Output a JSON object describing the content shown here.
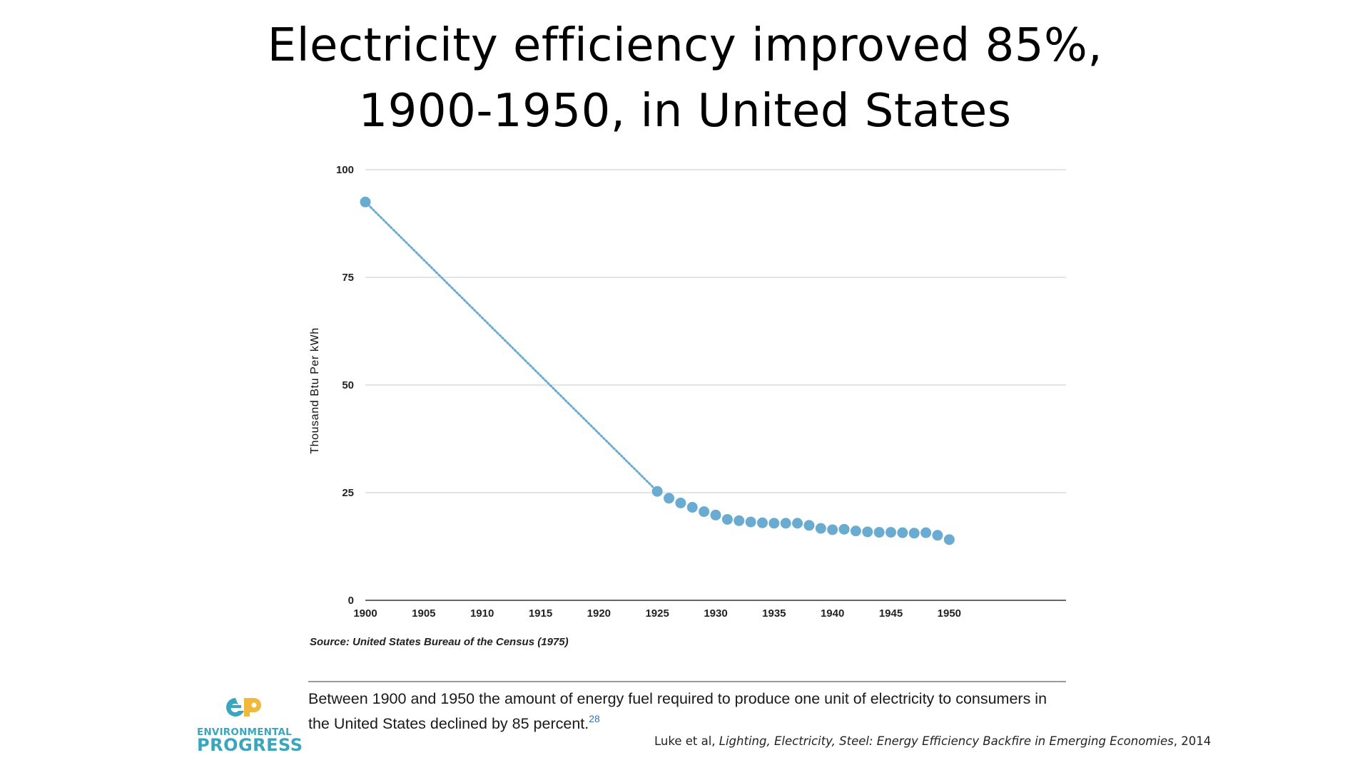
{
  "title": {
    "line1": "Electricity efficiency improved 85%,",
    "line2": "1900-1950, in United States"
  },
  "chart_data": {
    "type": "scatter",
    "title": "",
    "xlabel": "",
    "ylabel": "Thousand Btu Per kWh",
    "xlim": [
      1900,
      1960
    ],
    "ylim": [
      0,
      100
    ],
    "x_ticks": [
      1900,
      1905,
      1910,
      1915,
      1920,
      1925,
      1930,
      1935,
      1940,
      1945,
      1950
    ],
    "y_ticks": [
      0,
      25,
      50,
      75,
      100
    ],
    "grid": true,
    "gap_line": "dotted",
    "x": [
      1900,
      1925,
      1926,
      1927,
      1928,
      1929,
      1930,
      1931,
      1932,
      1933,
      1934,
      1935,
      1936,
      1937,
      1938,
      1939,
      1940,
      1941,
      1942,
      1943,
      1944,
      1945,
      1946,
      1947,
      1948,
      1949,
      1950
    ],
    "y": [
      92.5,
      25.3,
      23.7,
      22.6,
      21.6,
      20.6,
      19.8,
      18.8,
      18.5,
      18.2,
      18.0,
      17.9,
      17.9,
      17.9,
      17.4,
      16.7,
      16.4,
      16.5,
      16.1,
      15.9,
      15.8,
      15.8,
      15.7,
      15.6,
      15.7,
      15.1,
      14.1
    ],
    "color": "#6aabd2"
  },
  "source": "Source: United States Bureau of the Census (1975)",
  "quote": {
    "text": "Between 1900 and 1950 the amount of energy fuel required to produce one unit of electricity to consumers in the United States declined by 85 percent.",
    "footnote": "28"
  },
  "citation": {
    "author": "Luke et al, ",
    "work": "Lighting, Electricity, Steel: Energy Efficiency Backfire in Emerging Economies",
    "year": ", 2014"
  },
  "logo": {
    "line1": "ENVIRONMENTAL",
    "line2": "PROGRESS",
    "colors": {
      "teal": "#3aa6bd",
      "yellow": "#f0b93a"
    }
  }
}
